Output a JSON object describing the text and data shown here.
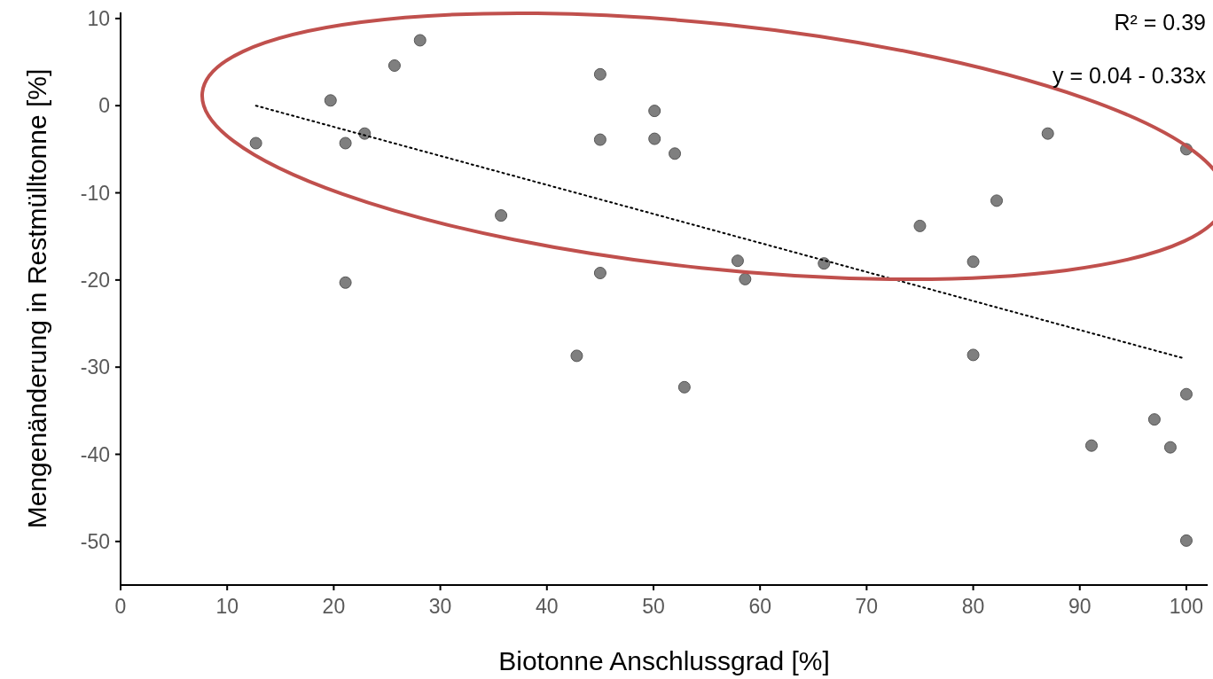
{
  "chart_data": {
    "type": "scatter",
    "xlabel": "Biotonne Anschlussgrad [%]",
    "ylabel": "Mengenänderung in Restmülltonne [%]",
    "xlim": [
      0,
      102
    ],
    "xticks": [
      0,
      10,
      20,
      30,
      40,
      50,
      60,
      70,
      80,
      90,
      100
    ],
    "ylim": [
      -55,
      10.7
    ],
    "yticks": [
      -50,
      -40,
      -30,
      -20,
      -10,
      0,
      10
    ],
    "grid": false,
    "annotations": [
      "R² = 0.39",
      "y = 0.04 - 0.33x"
    ],
    "series": [
      {
        "color": "#7f7f7f",
        "marker": "circle",
        "x": [
          12.7,
          19.7,
          21.1,
          21.1,
          22.9,
          25.7,
          28.1,
          35.7,
          42.8,
          45,
          45,
          45,
          50.1,
          50.1,
          52,
          52.9,
          57.9,
          58.6,
          66,
          75,
          80,
          80,
          82.2,
          87,
          91.1,
          97,
          98.5,
          100,
          100,
          100
        ],
        "values": [
          -4.3,
          0.6,
          -4.3,
          -20.3,
          -3.2,
          4.6,
          7.5,
          -12.6,
          -28.7,
          3.6,
          -3.9,
          -19.2,
          -0.6,
          -3.8,
          -5.5,
          -32.3,
          -17.8,
          -19.9,
          -18.1,
          -13.8,
          -17.9,
          -28.6,
          -10.9,
          -3.2,
          -39,
          -36,
          -39.2,
          -5,
          -33.1,
          -49.9
        ]
      },
      {
        "type": "line",
        "color": "#000000",
        "marker": "none",
        "line_style": "dotted",
        "x": [
          12.7,
          99.8
        ],
        "values": [
          0,
          -29
        ]
      }
    ]
  }
}
